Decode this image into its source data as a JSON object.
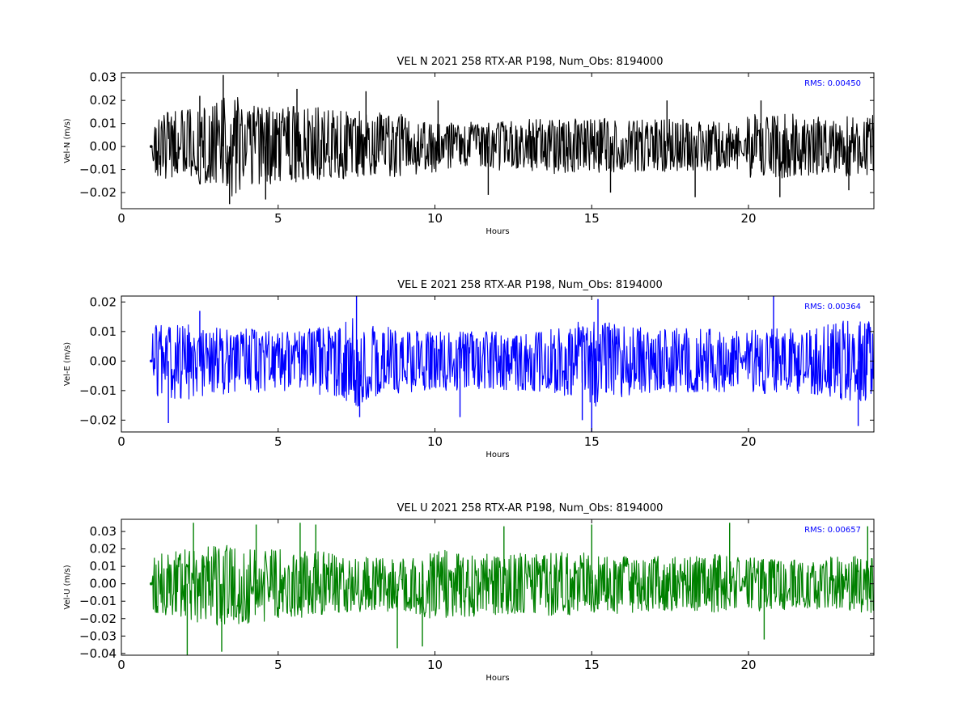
{
  "chart_data": [
    {
      "type": "line",
      "title": "VEL N 2021 258 RTX-AR  P198, Num_Obs: 8194000",
      "xlabel": "Hours",
      "ylabel": "Vel-N (m/s)",
      "xlim": [
        0,
        24
      ],
      "ylim": [
        -0.027,
        0.032
      ],
      "xticks": [
        "0",
        "5",
        "10",
        "15",
        "20"
      ],
      "yticks": [
        "−0.02",
        "−0.01",
        "0.00",
        "0.01",
        "0.02",
        "0.03"
      ],
      "annotation": "RMS:  0.00450",
      "color": "#000000",
      "grid": false,
      "series": [
        {
          "x_start": 1.0,
          "x_end": 24.0,
          "gap": [
            19.7,
            19.9
          ],
          "envelope_x": [
            1.0,
            2.0,
            3.0,
            3.5,
            4.0,
            5.0,
            6.0,
            7.0,
            8.0,
            9.0,
            10.0,
            11.0,
            12.0,
            13.0,
            14.0,
            15.0,
            16.0,
            17.0,
            18.0,
            19.0,
            19.7,
            20.0,
            21.0,
            22.0,
            23.0,
            24.0
          ],
          "envelope_upper": [
            0.014,
            0.016,
            0.02,
            0.024,
            0.018,
            0.017,
            0.018,
            0.016,
            0.015,
            0.014,
            0.01,
            0.011,
            0.011,
            0.012,
            0.012,
            0.012,
            0.013,
            0.012,
            0.012,
            0.012,
            0.01,
            0.014,
            0.015,
            0.013,
            0.013,
            0.014
          ],
          "envelope_lower": [
            -0.013,
            -0.015,
            -0.019,
            -0.022,
            -0.017,
            -0.016,
            -0.015,
            -0.014,
            -0.014,
            -0.013,
            -0.011,
            -0.011,
            -0.011,
            -0.011,
            -0.012,
            -0.011,
            -0.012,
            -0.011,
            -0.011,
            -0.011,
            -0.01,
            -0.014,
            -0.014,
            -0.013,
            -0.013,
            -0.013
          ],
          "spikes": [
            [
              3.25,
              0.031
            ],
            [
              3.45,
              -0.025
            ],
            [
              2.5,
              0.022
            ],
            [
              4.6,
              -0.023
            ],
            [
              5.6,
              0.025
            ],
            [
              7.8,
              0.024
            ],
            [
              10.1,
              0.02
            ],
            [
              11.7,
              -0.021
            ],
            [
              15.6,
              -0.02
            ],
            [
              17.4,
              0.02
            ],
            [
              18.3,
              -0.022
            ],
            [
              20.4,
              0.02
            ],
            [
              21.0,
              -0.022
            ],
            [
              23.2,
              -0.019
            ]
          ]
        }
      ]
    },
    {
      "type": "line",
      "title": "VEL E 2021 258 RTX-AR  P198, Num_Obs: 8194000",
      "xlabel": "Hours",
      "ylabel": "Vel-E (m/s)",
      "xlim": [
        0,
        24
      ],
      "ylim": [
        -0.024,
        0.022
      ],
      "xticks": [
        "0",
        "5",
        "10",
        "15",
        "20"
      ],
      "yticks": [
        "−0.02",
        "−0.01",
        "0.00",
        "0.01",
        "0.02"
      ],
      "annotation": "RMS:  0.00364",
      "color": "#0000ff",
      "grid": false,
      "series": [
        {
          "x_start": 1.0,
          "x_end": 24.0,
          "gap": [
            19.7,
            19.9
          ],
          "envelope_x": [
            1.0,
            2.0,
            3.0,
            4.0,
            5.0,
            6.0,
            7.0,
            7.5,
            8.0,
            9.0,
            10.0,
            11.0,
            12.0,
            13.0,
            14.0,
            15.0,
            16.0,
            17.0,
            18.0,
            19.0,
            19.7,
            20.0,
            21.0,
            22.0,
            23.0,
            24.0
          ],
          "envelope_upper": [
            0.012,
            0.013,
            0.012,
            0.011,
            0.01,
            0.011,
            0.012,
            0.016,
            0.012,
            0.011,
            0.01,
            0.01,
            0.01,
            0.01,
            0.011,
            0.015,
            0.012,
            0.011,
            0.011,
            0.011,
            0.01,
            0.011,
            0.011,
            0.011,
            0.014,
            0.014
          ],
          "envelope_lower": [
            -0.012,
            -0.013,
            -0.012,
            -0.011,
            -0.01,
            -0.011,
            -0.012,
            -0.016,
            -0.012,
            -0.011,
            -0.01,
            -0.01,
            -0.01,
            -0.01,
            -0.011,
            -0.016,
            -0.012,
            -0.011,
            -0.011,
            -0.011,
            -0.01,
            -0.011,
            -0.011,
            -0.011,
            -0.014,
            -0.014
          ],
          "spikes": [
            [
              7.5,
              0.022
            ],
            [
              7.6,
              -0.019
            ],
            [
              14.7,
              -0.02
            ],
            [
              15.0,
              -0.024
            ],
            [
              15.2,
              0.021
            ],
            [
              20.8,
              0.022
            ],
            [
              23.5,
              -0.022
            ],
            [
              1.5,
              -0.021
            ],
            [
              2.5,
              0.017
            ],
            [
              10.8,
              -0.019
            ]
          ]
        }
      ]
    },
    {
      "type": "line",
      "title": "VEL U 2021 258 RTX-AR  P198, Num_Obs: 8194000",
      "xlabel": "Hours",
      "ylabel": "Vel-U (m/s)",
      "xlim": [
        0,
        24
      ],
      "ylim": [
        -0.041,
        0.037
      ],
      "xticks": [
        "0",
        "5",
        "10",
        "15",
        "20"
      ],
      "yticks": [
        "−0.04",
        "−0.03",
        "−0.02",
        "−0.01",
        "0.00",
        "0.01",
        "0.02",
        "0.03"
      ],
      "annotation": "RMS:  0.00657",
      "color": "#008000",
      "grid": false,
      "series": [
        {
          "x_start": 1.0,
          "x_end": 24.0,
          "gap": [
            19.7,
            19.9
          ],
          "envelope_x": [
            1.0,
            2.0,
            3.0,
            4.0,
            5.0,
            6.0,
            7.0,
            8.0,
            9.0,
            10.0,
            11.0,
            12.0,
            13.0,
            14.0,
            15.0,
            16.0,
            17.0,
            18.0,
            19.0,
            19.7,
            20.0,
            21.0,
            22.0,
            23.0,
            24.0
          ],
          "envelope_upper": [
            0.016,
            0.02,
            0.022,
            0.022,
            0.02,
            0.02,
            0.016,
            0.015,
            0.015,
            0.02,
            0.018,
            0.017,
            0.018,
            0.019,
            0.018,
            0.017,
            0.016,
            0.016,
            0.017,
            0.015,
            0.016,
            0.014,
            0.015,
            0.016,
            0.017
          ],
          "envelope_lower": [
            -0.016,
            -0.021,
            -0.024,
            -0.023,
            -0.021,
            -0.02,
            -0.017,
            -0.016,
            -0.016,
            -0.021,
            -0.019,
            -0.018,
            -0.018,
            -0.019,
            -0.018,
            -0.017,
            -0.016,
            -0.016,
            -0.017,
            -0.015,
            -0.016,
            -0.015,
            -0.015,
            -0.016,
            -0.017
          ],
          "spikes": [
            [
              2.1,
              -0.041
            ],
            [
              3.2,
              -0.039
            ],
            [
              2.3,
              0.035
            ],
            [
              5.7,
              0.035
            ],
            [
              6.2,
              0.034
            ],
            [
              8.8,
              -0.037
            ],
            [
              9.6,
              -0.036
            ],
            [
              12.2,
              0.033
            ],
            [
              15.0,
              0.034
            ],
            [
              19.4,
              0.035
            ],
            [
              20.5,
              -0.032
            ],
            [
              23.8,
              0.033
            ],
            [
              4.3,
              0.034
            ]
          ]
        }
      ]
    }
  ]
}
